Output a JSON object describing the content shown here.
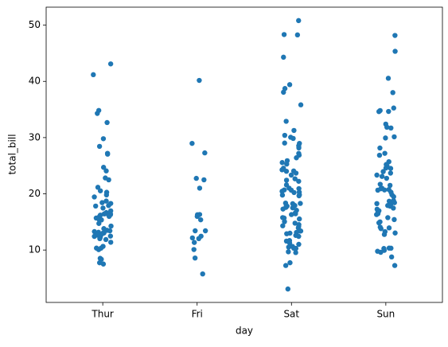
{
  "chart_data": {
    "type": "strip",
    "x_label": "day",
    "y_label": "total_bill",
    "categories": [
      "Thur",
      "Fri",
      "Sat",
      "Sun"
    ],
    "color": "#1f77b4",
    "values": [
      [
        41.19,
        43.11,
        34.83,
        34.3,
        32.68,
        29.8,
        28.44,
        27.2,
        27.05,
        24.71,
        24.08,
        22.82,
        22.49,
        21.16,
        20.53,
        20.27,
        19.81,
        19.44,
        18.71,
        18.43,
        18.28,
        17.92,
        17.82,
        17.47,
        16.97,
        16.66,
        16.47,
        16.43,
        16.4,
        16.29,
        16.21,
        16.0,
        15.98,
        15.95,
        15.69,
        15.48,
        15.36,
        14.73,
        14.26,
        13.81,
        13.51,
        13.42,
        13.28,
        13.16,
        13.03,
        13.0,
        12.74,
        12.66,
        12.48,
        12.43,
        12.26,
        12.03,
        11.87,
        11.38,
        10.65,
        10.34,
        10.33,
        10.07,
        8.52,
        8.35,
        7.74,
        7.51
      ],
      [
        40.17,
        28.97,
        27.28,
        22.75,
        22.49,
        21.01,
        16.32,
        16.27,
        15.98,
        15.38,
        13.42,
        13.42,
        12.46,
        12.16,
        12.03,
        11.35,
        10.09,
        8.58,
        5.75
      ],
      [
        50.81,
        48.33,
        48.27,
        44.3,
        39.42,
        38.73,
        38.07,
        35.83,
        32.9,
        31.27,
        30.4,
        30.06,
        29.85,
        29.03,
        28.97,
        28.55,
        28.17,
        27.18,
        26.88,
        26.41,
        25.89,
        25.56,
        25.29,
        24.55,
        24.27,
        24.06,
        24.01,
        23.68,
        23.33,
        22.67,
        22.42,
        22.23,
        21.58,
        21.01,
        20.92,
        20.69,
        20.65,
        20.45,
        20.29,
        20.23,
        19.82,
        19.77,
        19.65,
        18.35,
        18.29,
        18.24,
        17.92,
        17.81,
        17.78,
        17.59,
        17.51,
        17.29,
        17.07,
        16.58,
        16.45,
        16.31,
        15.77,
        15.69,
        15.53,
        15.04,
        14.78,
        14.52,
        14.31,
        14.15,
        13.94,
        13.39,
        13.37,
        13.13,
        13.0,
        12.9,
        12.6,
        12.43,
        11.69,
        11.59,
        11.24,
        11.02,
        10.63,
        10.51,
        10.33,
        10.29,
        9.68,
        9.55,
        7.74,
        7.25,
        3.07
      ],
      [
        48.17,
        45.35,
        40.55,
        38.01,
        35.26,
        34.81,
        34.65,
        34.63,
        32.4,
        31.85,
        31.71,
        30.14,
        29.93,
        28.15,
        27.2,
        26.86,
        25.71,
        25.21,
        25.0,
        24.59,
        24.52,
        23.95,
        23.68,
        23.33,
        23.1,
        22.76,
        21.7,
        21.5,
        21.01,
        20.9,
        20.76,
        20.69,
        20.65,
        20.29,
        19.82,
        19.49,
        18.78,
        18.69,
        18.43,
        18.26,
        18.15,
        17.92,
        17.81,
        17.46,
        17.26,
        16.99,
        16.93,
        16.82,
        16.47,
        16.31,
        15.76,
        15.42,
        15.01,
        14.83,
        14.07,
        13.94,
        13.81,
        13.27,
        13.03,
        12.77,
        10.34,
        10.33,
        10.27,
        9.94,
        9.78,
        9.6,
        8.77,
        7.25
      ]
    ],
    "ylim": [
      0.68,
      53.2
    ],
    "yticks": [
      10,
      20,
      30,
      40,
      50
    ]
  }
}
